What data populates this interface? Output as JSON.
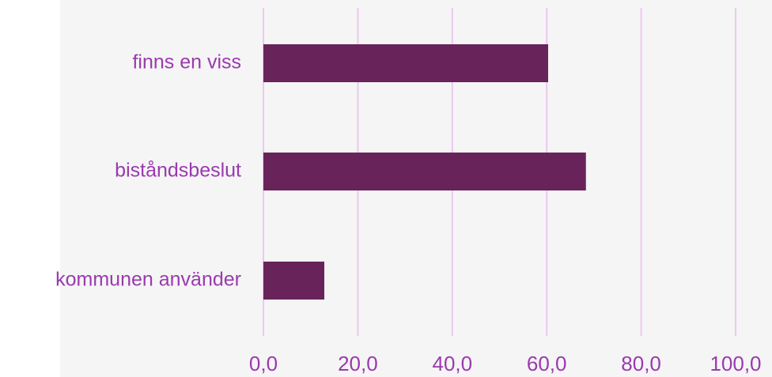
{
  "chart_data": {
    "type": "bar",
    "orientation": "horizontal",
    "categories": [
      "finns en viss",
      "biståndsbeslut",
      "kommunen använder"
    ],
    "values": [
      60.3,
      68.3,
      12.9
    ],
    "color": "#68245a",
    "xlim": [
      0,
      100
    ],
    "xticks": [
      {
        "value": 0,
        "label": "0,0"
      },
      {
        "value": 20,
        "label": "20,0"
      },
      {
        "value": 40,
        "label": "40,0"
      },
      {
        "value": 60,
        "label": "60,0"
      },
      {
        "value": 80,
        "label": "80,0"
      },
      {
        "value": 100,
        "label": "100,0"
      }
    ],
    "grid": true
  }
}
